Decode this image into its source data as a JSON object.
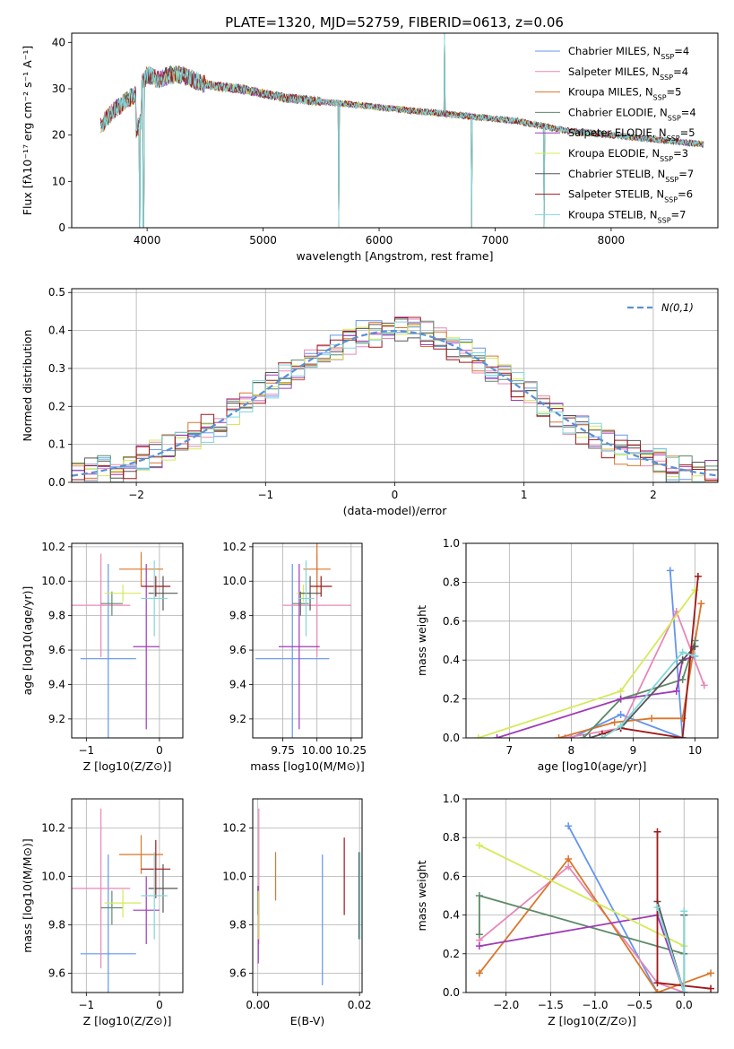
{
  "figure": {
    "title": "PLATE=1320, MJD=52759, FIBERID=0613, z=0.06"
  },
  "legend": [
    {
      "label": "Chabrier MILES, N",
      "sub": "SSP",
      "suffix": "=4",
      "color": "#6495ed"
    },
    {
      "label": "Salpeter MILES, N",
      "sub": "SSP",
      "suffix": "=4",
      "color": "#e887b8"
    },
    {
      "label": "Kroupa MILES, N",
      "sub": "SSP",
      "suffix": "=5",
      "color": "#d9772b"
    },
    {
      "label": "Chabrier ELODIE, N",
      "sub": "SSP",
      "suffix": "=4",
      "color": "#5e8a68"
    },
    {
      "label": "Salpeter ELODIE, N",
      "sub": "SSP",
      "suffix": "=5",
      "color": "#a03bb5"
    },
    {
      "label": "Kroupa ELODIE, N",
      "sub": "SSP",
      "suffix": "=3",
      "color": "#d4ea5a"
    },
    {
      "label": "Chabrier STELIB, N",
      "sub": "SSP",
      "suffix": "=7",
      "color": "#555555"
    },
    {
      "label": "Salpeter STELIB, N",
      "sub": "SSP",
      "suffix": "=6",
      "color": "#a01818"
    },
    {
      "label": "Kroupa STELIB, N",
      "sub": "SSP",
      "suffix": "=7",
      "color": "#7fd8dc"
    }
  ],
  "chart_data": [
    {
      "id": "spectrum",
      "type": "line",
      "xlabel": "wavelength [Angstrom, rest frame]",
      "ylabel": "Flux [fλ10⁻¹⁷ erg cm⁻² s⁻¹ A⁻¹]",
      "xlim": [
        3350,
        8920
      ],
      "ylim": [
        0,
        42
      ],
      "xticks": [
        4000,
        5000,
        6000,
        7000,
        8000
      ],
      "yticks": [
        0,
        10,
        20,
        30,
        40
      ],
      "continuum": [
        [
          3600,
          22
        ],
        [
          3700,
          25
        ],
        [
          3800,
          27
        ],
        [
          3900,
          29
        ],
        [
          4000,
          33
        ],
        [
          4100,
          32
        ],
        [
          4200,
          33
        ],
        [
          4300,
          33
        ],
        [
          4400,
          32
        ],
        [
          4500,
          31
        ],
        [
          4600,
          30.5
        ],
        [
          4800,
          30
        ],
        [
          5000,
          29
        ],
        [
          5200,
          28
        ],
        [
          5400,
          27.5
        ],
        [
          5600,
          27
        ],
        [
          5800,
          26.5
        ],
        [
          6000,
          26
        ],
        [
          6200,
          25.5
        ],
        [
          6400,
          25
        ],
        [
          6600,
          24.5
        ],
        [
          6800,
          24
        ],
        [
          7000,
          23.5
        ],
        [
          7200,
          23
        ],
        [
          7400,
          22
        ],
        [
          7600,
          21
        ],
        [
          7800,
          20.5
        ],
        [
          8000,
          20
        ],
        [
          8200,
          19.5
        ],
        [
          8400,
          19
        ],
        [
          8600,
          18.5
        ],
        [
          8800,
          18
        ]
      ],
      "features": [
        [
          3934,
          0
        ],
        [
          3969,
          0
        ],
        [
          5650,
          0
        ],
        [
          6563,
          42
        ],
        [
          6800,
          0
        ],
        [
          7420,
          0
        ]
      ]
    },
    {
      "id": "residuals",
      "type": "line",
      "xlabel": "(data-model)/error",
      "ylabel": "Normed distribution",
      "xlim": [
        -2.5,
        2.5
      ],
      "ylim": [
        0,
        0.51
      ],
      "xticks": [
        -2,
        -1,
        0,
        1,
        2
      ],
      "yticks": [
        0.0,
        0.1,
        0.2,
        0.3,
        0.4,
        0.5
      ],
      "bin_width": 0.1,
      "reference_curve": {
        "label": "N(0,1)",
        "color": "#5b8fd6"
      }
    },
    {
      "id": "age-vs-Z",
      "type": "scatter",
      "xlabel": "Z [log10(Z/Z⊙)]",
      "ylabel": "age  [log10(age/yr)]",
      "xlim": [
        -1.2,
        0.32
      ],
      "ylim": [
        9.09,
        10.22
      ],
      "xticks": [
        -1,
        0
      ],
      "yticks": [
        9.2,
        9.4,
        9.6,
        9.8,
        10.0,
        10.2
      ],
      "points": [
        {
          "x": -0.7,
          "xerr": 0.38,
          "y": 9.55,
          "yerr": 0.55,
          "color": "#6495ed"
        },
        {
          "x": -0.8,
          "xerr": 0.4,
          "y": 9.86,
          "yerr": 0.3,
          "color": "#e887b8"
        },
        {
          "x": -0.25,
          "xerr": 0.3,
          "y": 10.07,
          "yerr": 0.1,
          "color": "#d9772b"
        },
        {
          "x": -0.65,
          "xerr": 0.15,
          "y": 9.87,
          "yerr": 0.07,
          "color": "#5e8a68"
        },
        {
          "x": -0.18,
          "xerr": 0.18,
          "y": 9.62,
          "yerr": 0.48,
          "color": "#a03bb5"
        },
        {
          "x": -0.5,
          "xerr": 0.25,
          "y": 9.93,
          "yerr": 0.05,
          "color": "#d4ea5a"
        },
        {
          "x": 0.05,
          "xerr": 0.2,
          "y": 9.93,
          "yerr": 0.1,
          "color": "#555555"
        },
        {
          "x": -0.05,
          "xerr": 0.2,
          "y": 9.97,
          "yerr": 0.06,
          "color": "#a01818"
        },
        {
          "x": -0.07,
          "xerr": 0.18,
          "y": 9.9,
          "yerr": 0.22,
          "color": "#7fd8dc"
        }
      ]
    },
    {
      "id": "age-vs-mass",
      "type": "scatter",
      "xlabel": "mass [log10(M/M⊙)]",
      "ylabel": "",
      "xlim": [
        9.53,
        10.33
      ],
      "ylim": [
        9.09,
        10.22
      ],
      "xticks": [
        9.75,
        10.0,
        10.25
      ],
      "yticks": [
        9.2,
        9.4,
        9.6,
        9.8,
        10.0,
        10.2
      ],
      "points": [
        {
          "x": 9.82,
          "xerr": 0.27,
          "y": 9.55,
          "yerr": 0.55,
          "color": "#6495ed"
        },
        {
          "x": 10.0,
          "xerr": 0.25,
          "y": 9.86,
          "yerr": 0.3,
          "color": "#e887b8"
        },
        {
          "x": 10.0,
          "xerr": 0.1,
          "y": 10.07,
          "yerr": 0.15,
          "color": "#d9772b"
        },
        {
          "x": 9.88,
          "xerr": 0.06,
          "y": 9.87,
          "yerr": 0.07,
          "color": "#5e8a68"
        },
        {
          "x": 9.87,
          "xerr": 0.15,
          "y": 9.62,
          "yerr": 0.48,
          "color": "#a03bb5"
        },
        {
          "x": 9.9,
          "xerr": 0.05,
          "y": 9.93,
          "yerr": 0.05,
          "color": "#d4ea5a"
        },
        {
          "x": 9.95,
          "xerr": 0.08,
          "y": 9.93,
          "yerr": 0.1,
          "color": "#555555"
        },
        {
          "x": 10.03,
          "xerr": 0.08,
          "y": 9.97,
          "yerr": 0.06,
          "color": "#a01818"
        },
        {
          "x": 9.92,
          "xerr": 0.06,
          "y": 9.9,
          "yerr": 0.22,
          "color": "#7fd8dc"
        }
      ]
    },
    {
      "id": "mass-weight-vs-age",
      "type": "line",
      "xlabel": "age  [log10(age/yr)]",
      "ylabel": "mass weight",
      "xlim": [
        6.3,
        10.37
      ],
      "ylim": [
        0.0,
        1.0
      ],
      "xticks": [
        7,
        8,
        9,
        10
      ],
      "yticks": [
        0.0,
        0.2,
        0.4,
        0.6,
        0.8,
        1.0
      ],
      "series": [
        {
          "color": "#6495ed",
          "x": [
            8.0,
            8.8,
            9.8,
            9.6
          ],
          "y": [
            0.0,
            0.12,
            0.0,
            0.86
          ]
        },
        {
          "color": "#e887b8",
          "x": [
            7.9,
            8.8,
            9.7,
            10.15
          ],
          "y": [
            0.0,
            0.05,
            0.65,
            0.27
          ]
        },
        {
          "color": "#d9772b",
          "x": [
            7.8,
            8.7,
            9.3,
            9.8,
            10.1
          ],
          "y": [
            0.0,
            0.08,
            0.1,
            0.1,
            0.69
          ]
        },
        {
          "color": "#5e8a68",
          "x": [
            8.2,
            8.8,
            9.8,
            10.0
          ],
          "y": [
            0.0,
            0.2,
            0.3,
            0.5
          ]
        },
        {
          "color": "#a03bb5",
          "x": [
            6.8,
            8.8,
            9.7,
            9.8,
            10.0
          ],
          "y": [
            0.0,
            0.2,
            0.24,
            0.4,
            0.42
          ]
        },
        {
          "color": "#d4ea5a",
          "x": [
            6.5,
            8.8,
            10.0
          ],
          "y": [
            0.0,
            0.24,
            0.76
          ]
        },
        {
          "color": "#555555",
          "x": [
            8.3,
            8.8,
            9.8,
            10.0
          ],
          "y": [
            0.0,
            0.05,
            0.4,
            0.47
          ]
        },
        {
          "color": "#a01818",
          "x": [
            8.5,
            8.8,
            9.8,
            10.05
          ],
          "y": [
            0.02,
            0.05,
            0.0,
            0.83
          ]
        },
        {
          "color": "#7fd8dc",
          "x": [
            8.5,
            8.8,
            9.8,
            10.0
          ],
          "y": [
            0.0,
            0.06,
            0.44,
            0.42
          ]
        }
      ]
    },
    {
      "id": "mass-vs-Z",
      "type": "scatter",
      "xlabel": "Z [log10(Z/Z⊙)]",
      "ylabel": "mass [log10(M/M⊙)]",
      "xlim": [
        -1.2,
        0.32
      ],
      "ylim": [
        9.52,
        10.32
      ],
      "xticks": [
        -1,
        0
      ],
      "yticks": [
        9.6,
        9.8,
        10.0,
        10.2
      ],
      "points": [
        {
          "x": -0.7,
          "xerr": 0.38,
          "y": 9.68,
          "yerr": 0.41,
          "color": "#6495ed"
        },
        {
          "x": -0.8,
          "xerr": 0.4,
          "y": 9.95,
          "yerr": 0.33,
          "color": "#e887b8"
        },
        {
          "x": -0.25,
          "xerr": 0.3,
          "y": 10.09,
          "yerr": 0.08,
          "color": "#d9772b"
        },
        {
          "x": -0.65,
          "xerr": 0.15,
          "y": 9.87,
          "yerr": 0.07,
          "color": "#5e8a68"
        },
        {
          "x": -0.18,
          "xerr": 0.18,
          "y": 9.86,
          "yerr": 0.14,
          "color": "#a03bb5"
        },
        {
          "x": -0.5,
          "xerr": 0.25,
          "y": 9.89,
          "yerr": 0.06,
          "color": "#d4ea5a"
        },
        {
          "x": 0.05,
          "xerr": 0.2,
          "y": 9.95,
          "yerr": 0.1,
          "color": "#555555"
        },
        {
          "x": -0.05,
          "xerr": 0.2,
          "y": 10.03,
          "yerr": 0.12,
          "color": "#a01818"
        },
        {
          "x": -0.07,
          "xerr": 0.18,
          "y": 9.92,
          "yerr": 0.18,
          "color": "#7fd8dc"
        }
      ]
    },
    {
      "id": "mass-vs-EBV",
      "type": "scatter",
      "xlabel": "E(B-V)",
      "ylabel": "",
      "xlim": [
        -0.001,
        0.0205
      ],
      "ylim": [
        9.52,
        10.32
      ],
      "xticks": [
        0.0,
        0.02
      ],
      "xtick_labels": [
        "0.00",
        "0.02"
      ],
      "yticks": [
        9.6,
        9.8,
        10.0,
        10.2
      ],
      "points": [
        {
          "x": 0.0127,
          "xerr": 0,
          "y": 9.82,
          "yerr": 0.27,
          "color": "#6495ed"
        },
        {
          "x": 0.0002,
          "xerr": 0,
          "y": 10.0,
          "yerr": 0.28,
          "color": "#e887b8"
        },
        {
          "x": 0.0035,
          "xerr": 0,
          "y": 10.0,
          "yerr": 0.1,
          "color": "#d9772b"
        },
        {
          "x": 0.0,
          "xerr": 0,
          "y": 9.9,
          "yerr": 0.06,
          "color": "#5e8a68"
        },
        {
          "x": 0.0001,
          "xerr": 0,
          "y": 9.8,
          "yerr": 0.16,
          "color": "#a03bb5"
        },
        {
          "x": 0.0001,
          "xerr": 0,
          "y": 9.84,
          "yerr": 0.1,
          "color": "#d4ea5a"
        },
        {
          "x": 0.0199,
          "xerr": 0,
          "y": 9.92,
          "yerr": 0.18,
          "color": "#555555"
        },
        {
          "x": 0.017,
          "xerr": 0,
          "y": 10.0,
          "yerr": 0.16,
          "color": "#a01818"
        },
        {
          "x": 0.0201,
          "xerr": 0,
          "y": 9.92,
          "yerr": 0.18,
          "color": "#7fd8dc"
        }
      ]
    },
    {
      "id": "mass-weight-vs-Z",
      "type": "line",
      "xlabel": "Z [log10(Z/Z⊙)]",
      "ylabel": "mass weight",
      "xlim": [
        -2.45,
        0.38
      ],
      "ylim": [
        0.0,
        1.0
      ],
      "xticks": [
        -2.0,
        -1.5,
        -1.0,
        -0.5,
        0.0
      ],
      "yticks": [
        0.0,
        0.2,
        0.4,
        0.6,
        0.8,
        1.0
      ],
      "series": [
        {
          "color": "#6495ed",
          "x": [
            -1.3,
            -0.3,
            0.0
          ],
          "y": [
            0.86,
            0.0,
            0.0
          ]
        },
        {
          "color": "#e887b8",
          "x": [
            -2.3,
            -1.3,
            -0.3,
            0.0
          ],
          "y": [
            0.27,
            0.65,
            0.05,
            0.0
          ]
        },
        {
          "color": "#d9772b",
          "x": [
            -2.3,
            -1.3,
            -0.3,
            0.3
          ],
          "y": [
            0.1,
            0.69,
            0.0,
            0.1
          ]
        },
        {
          "color": "#5e8a68",
          "x": [
            -2.3,
            -2.3,
            0.0
          ],
          "y": [
            0.3,
            0.5,
            0.2
          ]
        },
        {
          "color": "#a03bb5",
          "x": [
            -2.3,
            -0.3,
            0.0
          ],
          "y": [
            0.24,
            0.4,
            0.0
          ]
        },
        {
          "color": "#d4ea5a",
          "x": [
            -2.3,
            0.0
          ],
          "y": [
            0.76,
            0.24
          ]
        },
        {
          "color": "#555555",
          "x": [
            -0.3,
            0.0,
            0.0
          ],
          "y": [
            0.47,
            0.0,
            0.4
          ]
        },
        {
          "color": "#a01818",
          "x": [
            -0.3,
            -0.3,
            0.3
          ],
          "y": [
            0.83,
            0.05,
            0.02
          ]
        },
        {
          "color": "#7fd8dc",
          "x": [
            -0.3,
            0.0,
            0.0
          ],
          "y": [
            0.44,
            0.0,
            0.42
          ]
        }
      ]
    }
  ]
}
